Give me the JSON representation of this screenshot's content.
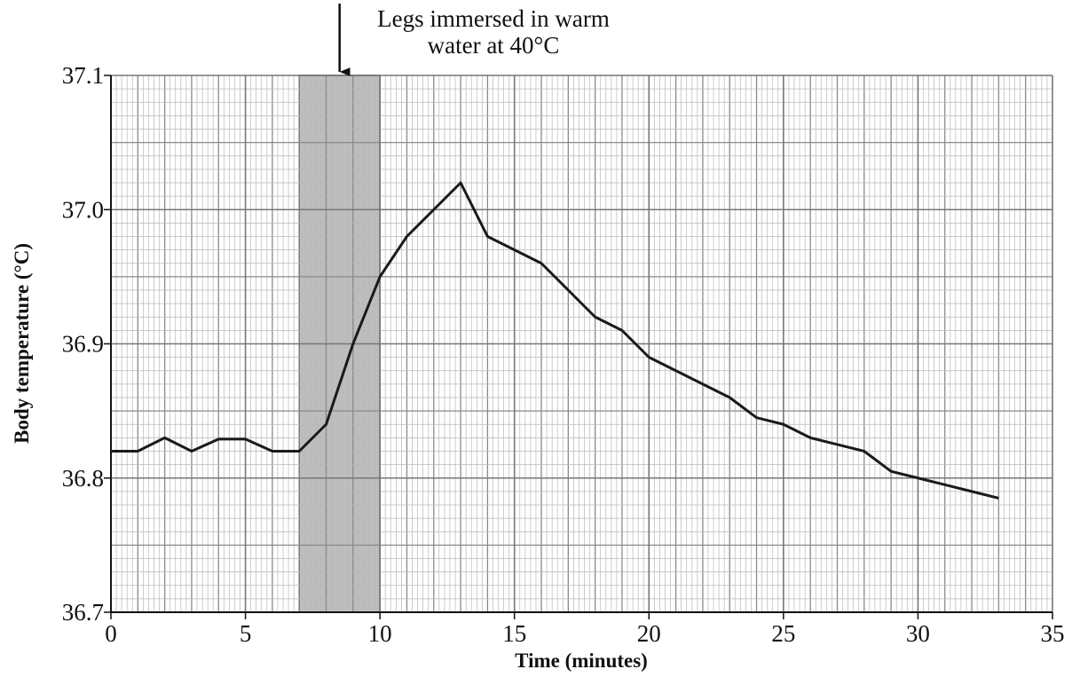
{
  "chart_data": {
    "type": "line",
    "x_label": "Time (minutes)",
    "y_label": "Body temperature (°C)",
    "x": [
      0,
      1,
      2,
      3,
      4,
      5,
      6,
      7,
      8,
      9,
      10,
      11,
      12,
      13,
      14,
      15,
      16,
      17,
      18,
      19,
      20,
      21,
      22,
      23,
      24,
      25,
      26,
      27,
      28,
      29,
      30,
      31,
      32,
      33
    ],
    "series": [
      {
        "color": "#1a1a1a",
        "values": [
          36.82,
          36.82,
          36.83,
          36.82,
          36.829,
          36.829,
          36.82,
          36.82,
          36.84,
          36.9,
          36.95,
          36.98,
          37.0,
          37.02,
          36.98,
          36.97,
          36.96,
          36.94,
          36.92,
          36.91,
          36.89,
          36.88,
          36.87,
          36.86,
          36.845,
          36.84,
          36.83,
          36.825,
          36.82,
          36.805,
          36.8,
          36.795,
          36.79,
          36.785
        ]
      }
    ],
    "xlim": [
      0,
      35
    ],
    "xticks": [
      0,
      5,
      10,
      15,
      20,
      25,
      30,
      35
    ],
    "ylim": [
      36.7,
      37.1
    ],
    "yticks": [
      36.7,
      36.8,
      36.9,
      {
        "value": 37,
        "label": "37.0"
      },
      37.1
    ],
    "grid": true,
    "shaded_region": {
      "x": [
        7,
        10
      ],
      "color": "#bdbdbd"
    },
    "annotation": {
      "lines": [
        "Legs immersed in warm",
        "water at 40°C"
      ],
      "x": 8.5
    }
  }
}
